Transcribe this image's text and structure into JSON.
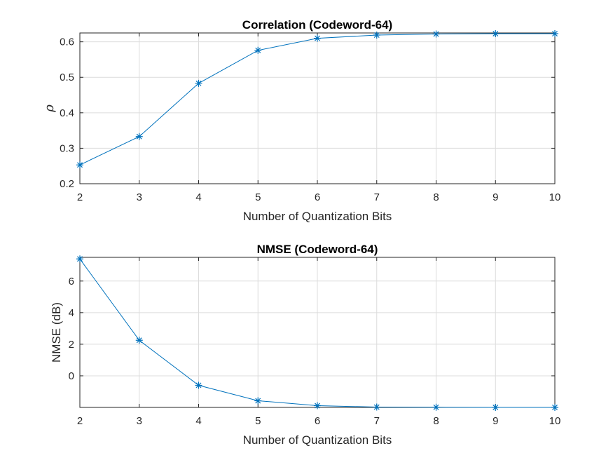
{
  "colors": {
    "series": "#0072BD"
  },
  "chart_data": [
    {
      "type": "line",
      "title": "Correlation (Codeword-64)",
      "xlabel": "Number of Quantization Bits",
      "ylabel": "ρ",
      "xlim": [
        2,
        10
      ],
      "ylim": [
        0.2,
        0.625
      ],
      "xticks": [
        2,
        3,
        4,
        5,
        6,
        7,
        8,
        9,
        10
      ],
      "yticks": [
        0.2,
        0.3,
        0.4,
        0.5,
        0.6
      ],
      "ytick_labels": [
        "0.2",
        "0.3",
        "0.4",
        "0.5",
        "0.6"
      ],
      "grid": true,
      "marker": "asterisk",
      "x": [
        2,
        3,
        4,
        5,
        6,
        7,
        8,
        9,
        10
      ],
      "y": [
        0.253,
        0.333,
        0.483,
        0.576,
        0.61,
        0.619,
        0.622,
        0.623,
        0.623
      ]
    },
    {
      "type": "line",
      "title": "NMSE (Codeword-64)",
      "xlabel": "Number of Quantization Bits",
      "ylabel": "NMSE (dB)",
      "xlim": [
        2,
        10
      ],
      "ylim": [
        -2,
        7.5
      ],
      "xticks": [
        2,
        3,
        4,
        5,
        6,
        7,
        8,
        9,
        10
      ],
      "yticks": [
        0,
        2,
        4,
        6
      ],
      "ytick_labels": [
        "0",
        "2",
        "4",
        "6"
      ],
      "grid": true,
      "marker": "asterisk",
      "x": [
        2,
        3,
        4,
        5,
        6,
        7,
        8,
        9,
        10
      ],
      "y": [
        7.4,
        2.25,
        -0.6,
        -1.58,
        -1.89,
        -1.98,
        -1.99,
        -2.0,
        -2.0
      ]
    }
  ]
}
